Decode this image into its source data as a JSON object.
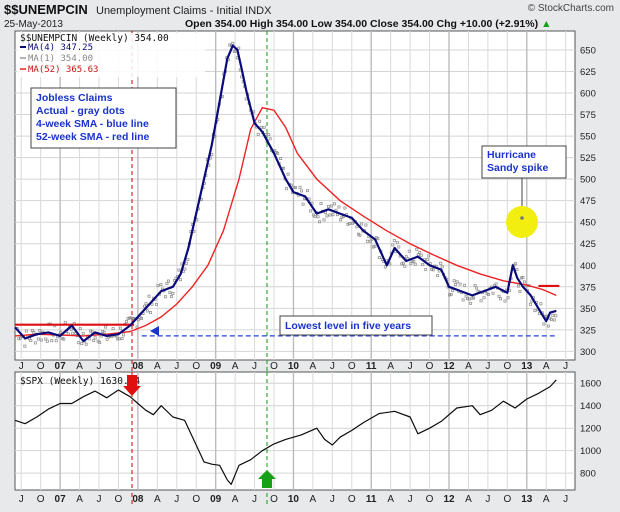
{
  "header": {
    "symbol": "$$UNEMPCIN",
    "description": "Unemployment Claims - Initial INDX",
    "date": "25-May-2013",
    "ohlc": "Open 354.00  High 354.00  Low 354.00  Close 354.00  Chg +10.00 (+2.91%)",
    "ohlc_arrow": "▲",
    "watermark": "© StockCharts.com"
  },
  "legend_top": {
    "line1": "$$UNEMPCIN (Weekly) 354.00",
    "line2": "MA(4) 347.25",
    "line3": "MA(1) 354.00",
    "line4": "MA(52) 365.63"
  },
  "legend_bottom": {
    "line1": "$SPX (Weekly) 1630.74"
  },
  "annotations": {
    "box1": [
      "Jobless Claims",
      "Actual - gray dots",
      "4-week SMA - blue line",
      "52-week SMA - red line"
    ],
    "box2": [
      "Hurricane",
      "Sandy spike"
    ],
    "box3": "Lowest level in five years"
  },
  "colors": {
    "ma4": "#0a0a7a",
    "ma52": "#ee2222",
    "spx": "#0d0d0d",
    "dots": "#8a8a8a",
    "annotation_text": "#1a33cc",
    "highlight": "#f2ee10",
    "arrow_up": "#19a019",
    "arrow_down": "#e01010",
    "vline_red": "#cc0000",
    "vline_green": "#119911"
  },
  "chart_data": [
    {
      "type": "line",
      "title": "$$UNEMPCIN (Weekly)",
      "y_ticks": [
        300,
        325,
        350,
        375,
        400,
        425,
        450,
        475,
        500,
        525,
        550,
        575,
        600,
        625,
        650
      ],
      "ylim": [
        290,
        672
      ],
      "x_labels": [
        "J",
        "O",
        "07",
        "A",
        "J",
        "O",
        "08",
        "A",
        "J",
        "O",
        "09",
        "A",
        "J",
        "O",
        "10",
        "A",
        "J",
        "O",
        "11",
        "A",
        "J",
        "O",
        "12",
        "A",
        "J",
        "O",
        "13",
        "A",
        "J"
      ],
      "x_label_years": [
        2006.5,
        2006.75,
        2007.0,
        2007.25,
        2007.5,
        2007.75,
        2008.0,
        2008.25,
        2008.5,
        2008.75,
        2009.0,
        2009.25,
        2009.5,
        2009.75,
        2010.0,
        2010.25,
        2010.5,
        2010.75,
        2011.0,
        2011.25,
        2011.5,
        2011.75,
        2012.0,
        2012.25,
        2012.5,
        2012.75,
        2013.0,
        2013.25,
        2013.5
      ],
      "xlim": [
        2006.42,
        2013.62
      ],
      "series": [
        {
          "name": "MA(4)",
          "x": [
            2006.42,
            2006.55,
            2006.7,
            2006.85,
            2007.0,
            2007.15,
            2007.3,
            2007.45,
            2007.6,
            2007.75,
            2007.9,
            2008.0,
            2008.15,
            2008.3,
            2008.45,
            2008.55,
            2008.65,
            2008.75,
            2008.85,
            2008.95,
            2009.05,
            2009.15,
            2009.22,
            2009.28,
            2009.33,
            2009.4,
            2009.5,
            2009.6,
            2009.75,
            2009.9,
            2010.0,
            2010.15,
            2010.3,
            2010.45,
            2010.6,
            2010.75,
            2010.9,
            2011.05,
            2011.2,
            2011.3,
            2011.45,
            2011.6,
            2011.75,
            2011.9,
            2012.0,
            2012.15,
            2012.3,
            2012.45,
            2012.6,
            2012.75,
            2012.82,
            2012.88,
            2012.95,
            2013.05,
            2013.15,
            2013.25,
            2013.3,
            2013.38
          ],
          "y": [
            328,
            315,
            320,
            322,
            318,
            330,
            312,
            322,
            318,
            320,
            330,
            340,
            355,
            370,
            375,
            390,
            420,
            460,
            500,
            540,
            590,
            640,
            655,
            650,
            630,
            600,
            565,
            555,
            530,
            500,
            485,
            480,
            460,
            465,
            460,
            455,
            440,
            430,
            400,
            420,
            405,
            410,
            400,
            395,
            375,
            370,
            365,
            370,
            375,
            368,
            400,
            385,
            375,
            365,
            350,
            335,
            345,
            347
          ]
        },
        {
          "name": "MA(52)",
          "x": [
            2006.42,
            2006.7,
            2007.0,
            2007.3,
            2007.6,
            2007.9,
            2008.1,
            2008.3,
            2008.5,
            2008.7,
            2008.9,
            2009.1,
            2009.3,
            2009.45,
            2009.6,
            2009.75,
            2009.9,
            2010.05,
            2010.3,
            2010.6,
            2010.9,
            2011.2,
            2011.5,
            2011.8,
            2012.1,
            2012.4,
            2012.7,
            2013.0,
            2013.2,
            2013.38
          ],
          "y": [
            318,
            320,
            319,
            318,
            320,
            323,
            330,
            340,
            355,
            375,
            400,
            440,
            500,
            558,
            583,
            580,
            560,
            530,
            500,
            475,
            457,
            440,
            425,
            412,
            400,
            390,
            382,
            377,
            372,
            365
          ]
        },
        {
          "name": "MA(1)",
          "x": [
            2007.0,
            2007.5,
            2007.95,
            2008.2,
            2008.5,
            2008.75,
            2009.0,
            2009.2,
            2009.5,
            2009.8,
            2010.1,
            2010.4,
            2010.7,
            2011.0,
            2011.3,
            2011.6,
            2011.9,
            2012.2,
            2012.5,
            2012.81,
            2013.0,
            2013.25,
            2013.36
          ],
          "y": [
            322,
            312,
            335,
            360,
            392,
            470,
            570,
            662,
            580,
            520,
            468,
            455,
            448,
            410,
            435,
            402,
            385,
            360,
            372,
            453,
            372,
            330,
            354
          ]
        }
      ],
      "reference_lines": [
        {
          "y": 331,
          "x": [
            2006.42,
            2007.95
          ],
          "color": "red"
        },
        {
          "y": 376,
          "x": [
            2013.15,
            2013.42
          ],
          "color": "red"
        },
        {
          "y": 318,
          "x": [
            2008.05,
            2013.38
          ],
          "color": "blue-dashed"
        }
      ]
    },
    {
      "type": "line",
      "title": "$SPX (Weekly)",
      "y_ticks": [
        800,
        1000,
        1200,
        1400,
        1600
      ],
      "ylim": [
        650,
        1700
      ],
      "series": [
        {
          "name": "$SPX",
          "x": [
            2006.42,
            2006.55,
            2006.7,
            2006.85,
            2007.0,
            2007.15,
            2007.3,
            2007.45,
            2007.6,
            2007.75,
            2007.9,
            2008.0,
            2008.1,
            2008.2,
            2008.3,
            2008.45,
            2008.6,
            2008.75,
            2008.85,
            2008.95,
            2009.05,
            2009.15,
            2009.2,
            2009.3,
            2009.45,
            2009.6,
            2009.75,
            2009.9,
            2010.1,
            2010.3,
            2010.4,
            2010.5,
            2010.6,
            2010.75,
            2010.9,
            2011.1,
            2011.3,
            2011.5,
            2011.6,
            2011.75,
            2011.9,
            2012.1,
            2012.3,
            2012.4,
            2012.55,
            2012.7,
            2012.85,
            2013.0,
            2013.15,
            2013.3,
            2013.38
          ],
          "y": [
            1270,
            1240,
            1300,
            1370,
            1420,
            1420,
            1480,
            1530,
            1470,
            1540,
            1480,
            1420,
            1360,
            1320,
            1400,
            1300,
            1270,
            1050,
            900,
            880,
            870,
            740,
            700,
            870,
            920,
            1000,
            1060,
            1100,
            1140,
            1200,
            1100,
            1050,
            1120,
            1180,
            1250,
            1330,
            1350,
            1300,
            1150,
            1200,
            1260,
            1380,
            1400,
            1320,
            1360,
            1440,
            1380,
            1460,
            1510,
            1570,
            1630
          ]
        }
      ]
    }
  ]
}
